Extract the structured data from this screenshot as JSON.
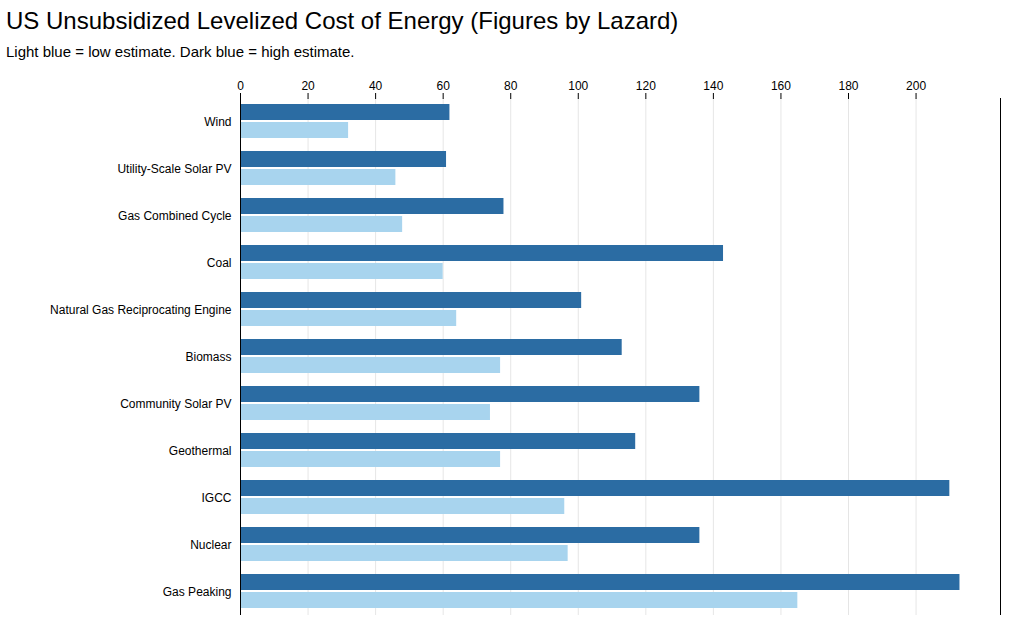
{
  "chart_data": {
    "type": "bar",
    "title": "US Unsubsidized Levelized Cost of Energy (Figures by Lazard)",
    "subtitle": "Light blue = low estimate. Dark blue = high estimate.",
    "orientation": "horizontal",
    "categories": [
      "Wind",
      "Utility-Scale Solar PV",
      "Gas Combined Cycle",
      "Coal",
      "Natural Gas Reciprocating Engine",
      "Biomass",
      "Community Solar PV",
      "Geothermal",
      "IGCC",
      "Nuclear",
      "Gas Peaking"
    ],
    "series": [
      {
        "color": "#2B6CA3",
        "values": [
          62,
          61,
          78,
          143,
          101,
          113,
          136,
          117,
          210,
          136,
          213
        ]
      },
      {
        "color": "#A8D4EE",
        "values": [
          32,
          46,
          48,
          60,
          64,
          77,
          74,
          77,
          96,
          97,
          165
        ]
      }
    ],
    "xlim": [
      0,
      225
    ],
    "xticks": [
      0,
      20,
      40,
      60,
      80,
      100,
      120,
      140,
      160,
      180,
      200
    ],
    "grid": true
  }
}
